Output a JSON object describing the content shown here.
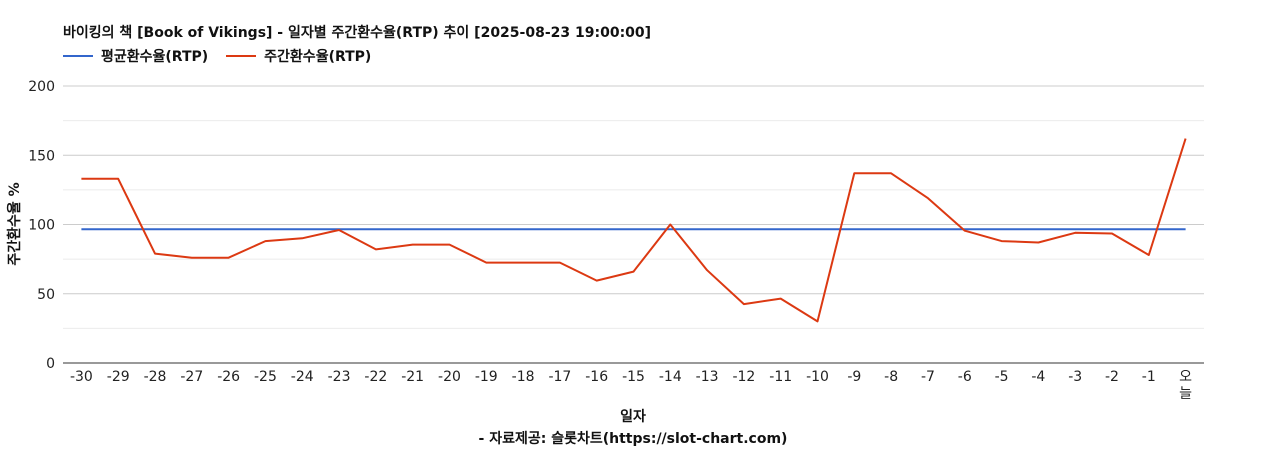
{
  "chart_data": {
    "type": "line",
    "title": "바이킹의 책 [Book of Vikings] - 일자별 주간환수율(RTP) 추이 [2025-08-23 19:00:00]",
    "xlabel": "일자",
    "ylabel": "주간환수율 %",
    "source": "- 자료제공: 슬롯차트(https://slot-chart.com)",
    "categories": [
      "-30",
      "-29",
      "-28",
      "-27",
      "-26",
      "-25",
      "-24",
      "-23",
      "-22",
      "-21",
      "-20",
      "-19",
      "-18",
      "-17",
      "-16",
      "-15",
      "-14",
      "-13",
      "-12",
      "-11",
      "-10",
      "-9",
      "-8",
      "-7",
      "-6",
      "-5",
      "-4",
      "-3",
      "-2",
      "-1",
      "오늘"
    ],
    "ylim": [
      0,
      200
    ],
    "yticks": [
      0,
      50,
      100,
      150,
      200
    ],
    "grid": true,
    "legend_position": "top-left",
    "series": [
      {
        "name": "평균환수율(RTP)",
        "color": "#3366cc",
        "values": [
          96.5,
          96.5,
          96.5,
          96.5,
          96.5,
          96.5,
          96.5,
          96.5,
          96.5,
          96.5,
          96.5,
          96.5,
          96.5,
          96.5,
          96.5,
          96.5,
          96.5,
          96.5,
          96.5,
          96.5,
          96.5,
          96.5,
          96.5,
          96.5,
          96.5,
          96.5,
          96.5,
          96.5,
          96.5,
          96.5,
          96.5
        ]
      },
      {
        "name": "주간환수율(RTP)",
        "color": "#dc3912",
        "values": [
          133,
          133,
          79,
          76,
          76,
          88,
          90,
          96,
          82,
          85.5,
          85.5,
          72.5,
          72.5,
          72.5,
          59.5,
          66,
          100,
          67,
          42.5,
          46.5,
          30,
          137,
          137,
          119,
          95.5,
          88,
          87,
          94,
          93.5,
          78,
          162
        ]
      }
    ]
  }
}
